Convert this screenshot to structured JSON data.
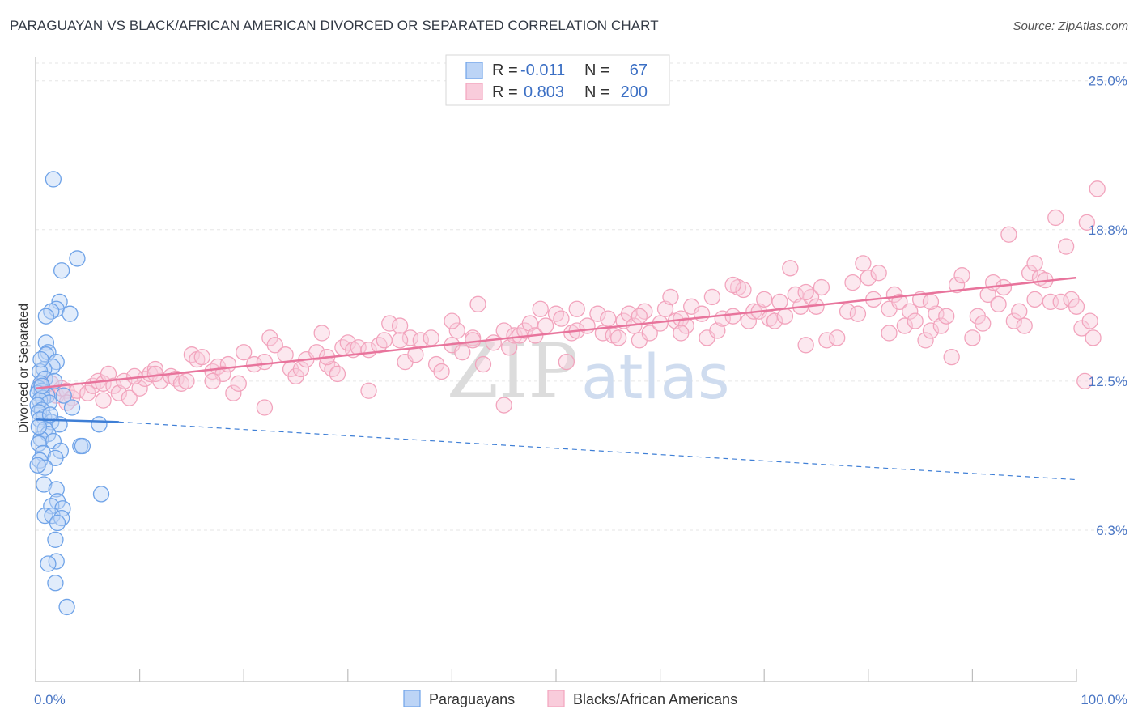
{
  "title": "PARAGUAYAN VS BLACK/AFRICAN AMERICAN DIVORCED OR SEPARATED CORRELATION CHART",
  "source": "Source: ZipAtlas.com",
  "watermark": {
    "zip": "ZIP",
    "atlas": "atlas"
  },
  "chart_data": {
    "type": "scatter",
    "title": "PARAGUAYAN VS BLACK/AFRICAN AMERICAN DIVORCED OR SEPARATED CORRELATION CHART",
    "xlabel": "",
    "ylabel": "Divorced or Separated",
    "xlim": [
      0,
      100
    ],
    "ylim": [
      0,
      26
    ],
    "x_tick_labels": [
      "0.0%",
      "100.0%"
    ],
    "y_ticks": [
      6.3,
      12.5,
      18.8,
      25.0
    ],
    "y_tick_labels": [
      "6.3%",
      "12.5%",
      "18.8%",
      "25.0%"
    ],
    "grid": true,
    "legend_position": "top-center",
    "legend": [
      {
        "r_label": "R =",
        "r_value": "-0.011",
        "n_label": "N =",
        "n_value": "67"
      },
      {
        "r_label": "R =",
        "r_value": "0.803",
        "n_label": "N =",
        "n_value": "200"
      }
    ],
    "series": [
      {
        "name": "Paraguayans",
        "color": "#6fa3e8",
        "line_color": "#3f7fd6",
        "trend": {
          "x": [
            0,
            8,
            100
          ],
          "y": [
            10.9,
            10.8,
            8.4
          ],
          "solid_until": 8
        },
        "points": [
          [
            1.7,
            20.9
          ],
          [
            4.0,
            17.6
          ],
          [
            2.5,
            17.1
          ],
          [
            2.3,
            15.8
          ],
          [
            2.0,
            15.5
          ],
          [
            1.5,
            15.4
          ],
          [
            3.3,
            15.3
          ],
          [
            1.0,
            15.2
          ],
          [
            1.0,
            14.1
          ],
          [
            1.2,
            13.7
          ],
          [
            1.0,
            13.6
          ],
          [
            2.0,
            13.3
          ],
          [
            1.6,
            13.1
          ],
          [
            0.8,
            13.0
          ],
          [
            0.4,
            12.9
          ],
          [
            0.9,
            12.6
          ],
          [
            1.8,
            12.5
          ],
          [
            0.5,
            12.4
          ],
          [
            0.3,
            12.2
          ],
          [
            0.6,
            12.1
          ],
          [
            0.2,
            12.0
          ],
          [
            1.1,
            11.9
          ],
          [
            0.7,
            11.8
          ],
          [
            0.4,
            11.7
          ],
          [
            1.3,
            11.6
          ],
          [
            0.2,
            11.5
          ],
          [
            3.5,
            11.4
          ],
          [
            0.6,
            11.3
          ],
          [
            0.3,
            11.2
          ],
          [
            0.8,
            11.0
          ],
          [
            0.4,
            10.9
          ],
          [
            1.5,
            10.8
          ],
          [
            2.3,
            10.7
          ],
          [
            6.1,
            10.7
          ],
          [
            0.9,
            10.5
          ],
          [
            1.2,
            10.3
          ],
          [
            0.5,
            10.1
          ],
          [
            1.7,
            10.0
          ],
          [
            0.3,
            9.9
          ],
          [
            4.3,
            9.8
          ],
          [
            4.5,
            9.8
          ],
          [
            2.4,
            9.6
          ],
          [
            0.7,
            9.5
          ],
          [
            1.9,
            9.3
          ],
          [
            0.4,
            9.2
          ],
          [
            0.9,
            8.9
          ],
          [
            0.2,
            9.0
          ],
          [
            0.8,
            8.2
          ],
          [
            2.0,
            8.0
          ],
          [
            6.3,
            7.8
          ],
          [
            2.1,
            7.5
          ],
          [
            1.5,
            7.3
          ],
          [
            2.6,
            7.2
          ],
          [
            0.9,
            6.9
          ],
          [
            1.6,
            6.9
          ],
          [
            2.5,
            6.8
          ],
          [
            2.1,
            6.6
          ],
          [
            1.9,
            5.9
          ],
          [
            2.0,
            5.0
          ],
          [
            1.2,
            4.9
          ],
          [
            1.9,
            4.1
          ],
          [
            3.0,
            3.1
          ],
          [
            0.3,
            10.6
          ],
          [
            1.4,
            11.1
          ],
          [
            0.6,
            12.3
          ],
          [
            2.7,
            11.9
          ],
          [
            0.5,
            13.4
          ]
        ]
      },
      {
        "name": "Blacks/African Americans",
        "color": "#f2a4bd",
        "line_color": "#e8749c",
        "trend": {
          "x": [
            0,
            100
          ],
          "y": [
            12.2,
            16.8
          ]
        },
        "points": [
          [
            0.5,
            12.3
          ],
          [
            1.0,
            12.0
          ],
          [
            1.5,
            12.4
          ],
          [
            2.0,
            11.9
          ],
          [
            2.5,
            12.2
          ],
          [
            3.0,
            12.1
          ],
          [
            3.5,
            11.8
          ],
          [
            4.0,
            12.1
          ],
          [
            5.0,
            12.0
          ],
          [
            5.5,
            12.3
          ],
          [
            6.0,
            12.5
          ],
          [
            6.5,
            12.4
          ],
          [
            7.0,
            12.8
          ],
          [
            7.5,
            12.3
          ],
          [
            8.0,
            12.0
          ],
          [
            8.5,
            12.5
          ],
          [
            9.0,
            11.8
          ],
          [
            10.0,
            12.2
          ],
          [
            10.5,
            12.6
          ],
          [
            11.0,
            12.8
          ],
          [
            11.5,
            13.0
          ],
          [
            12.0,
            12.5
          ],
          [
            13.0,
            12.7
          ],
          [
            13.5,
            12.6
          ],
          [
            14.0,
            12.4
          ],
          [
            14.5,
            12.5
          ],
          [
            15.0,
            13.6
          ],
          [
            15.5,
            13.4
          ],
          [
            16.0,
            13.5
          ],
          [
            17.0,
            12.9
          ],
          [
            17.5,
            13.1
          ],
          [
            18.0,
            12.8
          ],
          [
            18.5,
            13.2
          ],
          [
            19.0,
            12.0
          ],
          [
            19.5,
            12.4
          ],
          [
            20.0,
            13.7
          ],
          [
            21.0,
            13.2
          ],
          [
            22.0,
            13.3
          ],
          [
            22.5,
            14.3
          ],
          [
            23.0,
            14.0
          ],
          [
            24.0,
            13.6
          ],
          [
            24.5,
            13.0
          ],
          [
            25.0,
            12.7
          ],
          [
            25.5,
            13.0
          ],
          [
            26.0,
            13.4
          ],
          [
            27.0,
            13.7
          ],
          [
            27.5,
            14.5
          ],
          [
            28.0,
            13.2
          ],
          [
            28.5,
            13.0
          ],
          [
            29.0,
            12.8
          ],
          [
            29.5,
            13.9
          ],
          [
            30.0,
            14.1
          ],
          [
            30.5,
            13.8
          ],
          [
            31.0,
            13.9
          ],
          [
            32.0,
            13.8
          ],
          [
            33.0,
            14.0
          ],
          [
            33.5,
            14.2
          ],
          [
            34.0,
            14.9
          ],
          [
            35.0,
            14.8
          ],
          [
            35.5,
            13.3
          ],
          [
            36.0,
            14.3
          ],
          [
            36.5,
            13.6
          ],
          [
            37.0,
            14.2
          ],
          [
            38.0,
            14.3
          ],
          [
            38.5,
            13.2
          ],
          [
            39.0,
            12.9
          ],
          [
            40.0,
            14.0
          ],
          [
            40.5,
            14.6
          ],
          [
            41.0,
            13.7
          ],
          [
            42.0,
            14.3
          ],
          [
            42.5,
            15.7
          ],
          [
            43.0,
            13.2
          ],
          [
            44.0,
            14.1
          ],
          [
            45.0,
            14.6
          ],
          [
            45.5,
            13.9
          ],
          [
            46.0,
            14.4
          ],
          [
            46.5,
            14.4
          ],
          [
            47.0,
            14.6
          ],
          [
            47.5,
            14.9
          ],
          [
            48.0,
            14.4
          ],
          [
            48.5,
            15.5
          ],
          [
            49.0,
            14.8
          ],
          [
            50.0,
            15.3
          ],
          [
            50.5,
            15.1
          ],
          [
            51.0,
            13.3
          ],
          [
            51.5,
            14.5
          ],
          [
            52.0,
            14.6
          ],
          [
            53.0,
            14.8
          ],
          [
            54.0,
            15.3
          ],
          [
            54.5,
            14.5
          ],
          [
            55.0,
            15.1
          ],
          [
            55.5,
            14.4
          ],
          [
            56.0,
            14.3
          ],
          [
            56.5,
            15.0
          ],
          [
            57.0,
            15.3
          ],
          [
            57.5,
            14.8
          ],
          [
            58.0,
            14.2
          ],
          [
            58.5,
            15.4
          ],
          [
            59.0,
            14.5
          ],
          [
            60.0,
            14.9
          ],
          [
            60.5,
            15.5
          ],
          [
            61.0,
            16.0
          ],
          [
            61.5,
            15.0
          ],
          [
            62.0,
            15.1
          ],
          [
            62.5,
            14.8
          ],
          [
            63.0,
            15.6
          ],
          [
            64.0,
            15.3
          ],
          [
            64.5,
            14.3
          ],
          [
            65.0,
            16.0
          ],
          [
            65.5,
            14.6
          ],
          [
            66.0,
            15.1
          ],
          [
            67.0,
            15.2
          ],
          [
            67.5,
            16.4
          ],
          [
            68.0,
            16.3
          ],
          [
            68.5,
            15.0
          ],
          [
            69.0,
            15.4
          ],
          [
            69.5,
            15.4
          ],
          [
            70.0,
            15.9
          ],
          [
            70.5,
            15.1
          ],
          [
            71.0,
            15.0
          ],
          [
            71.5,
            15.8
          ],
          [
            72.0,
            15.2
          ],
          [
            72.5,
            17.2
          ],
          [
            73.0,
            16.1
          ],
          [
            73.5,
            15.6
          ],
          [
            74.0,
            14.0
          ],
          [
            74.5,
            16.0
          ],
          [
            75.0,
            15.6
          ],
          [
            75.5,
            16.4
          ],
          [
            76.0,
            14.2
          ],
          [
            77.0,
            14.3
          ],
          [
            78.0,
            15.4
          ],
          [
            78.5,
            16.6
          ],
          [
            79.0,
            15.3
          ],
          [
            79.5,
            17.4
          ],
          [
            80.0,
            16.8
          ],
          [
            80.5,
            15.9
          ],
          [
            81.0,
            17.0
          ],
          [
            82.0,
            15.5
          ],
          [
            82.5,
            16.1
          ],
          [
            83.0,
            15.8
          ],
          [
            83.5,
            14.8
          ],
          [
            84.0,
            15.4
          ],
          [
            84.5,
            15.0
          ],
          [
            85.0,
            15.9
          ],
          [
            85.5,
            14.2
          ],
          [
            86.0,
            14.6
          ],
          [
            86.5,
            15.3
          ],
          [
            87.0,
            14.8
          ],
          [
            87.5,
            15.2
          ],
          [
            88.0,
            13.5
          ],
          [
            88.5,
            16.5
          ],
          [
            89.0,
            16.9
          ],
          [
            90.0,
            14.3
          ],
          [
            90.5,
            15.2
          ],
          [
            91.0,
            14.9
          ],
          [
            91.5,
            16.1
          ],
          [
            92.0,
            16.6
          ],
          [
            92.5,
            15.7
          ],
          [
            93.0,
            16.4
          ],
          [
            93.5,
            18.6
          ],
          [
            94.0,
            15.0
          ],
          [
            94.5,
            15.4
          ],
          [
            95.0,
            14.8
          ],
          [
            95.5,
            17.0
          ],
          [
            96.0,
            17.4
          ],
          [
            96.5,
            16.8
          ],
          [
            97.0,
            16.7
          ],
          [
            97.5,
            15.8
          ],
          [
            98.0,
            19.3
          ],
          [
            98.5,
            15.8
          ],
          [
            99.0,
            18.1
          ],
          [
            99.5,
            15.9
          ],
          [
            100.0,
            15.6
          ],
          [
            100.5,
            14.7
          ],
          [
            100.8,
            12.5
          ],
          [
            101.0,
            19.1
          ],
          [
            101.3,
            15.0
          ],
          [
            101.6,
            14.3
          ],
          [
            102.0,
            20.5
          ],
          [
            22.0,
            11.4
          ],
          [
            35.0,
            14.2
          ],
          [
            45.0,
            11.5
          ],
          [
            67.0,
            16.5
          ],
          [
            74.0,
            16.2
          ],
          [
            32.0,
            12.1
          ],
          [
            6.5,
            11.7
          ],
          [
            11.5,
            12.8
          ],
          [
            17.0,
            12.5
          ],
          [
            28.0,
            13.5
          ],
          [
            42.0,
            14.2
          ],
          [
            58.0,
            15.2
          ],
          [
            62.0,
            14.5
          ],
          [
            86.0,
            15.8
          ],
          [
            96.0,
            15.9
          ],
          [
            3.0,
            11.6
          ],
          [
            9.5,
            12.7
          ],
          [
            40.0,
            15.0
          ],
          [
            52.0,
            15.5
          ],
          [
            82.0,
            14.5
          ]
        ]
      }
    ]
  },
  "bottom_legend": [
    "Paraguayans",
    "Blacks/African Americans"
  ]
}
